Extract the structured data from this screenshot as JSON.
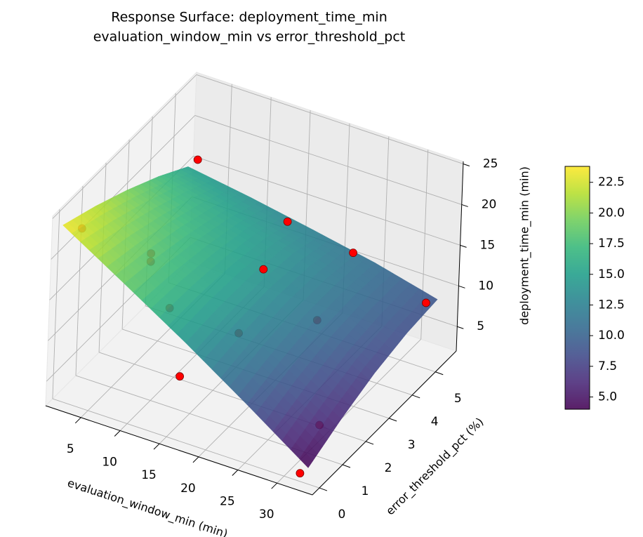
{
  "chart_data": {
    "type": "surface3d",
    "title": "Response Surface: deployment_time_min",
    "subtitle": "evaluation_window_min vs error_threshold_pct",
    "x_label": "evaluation_window_min (min)",
    "y_label": "error_threshold_pct (%)",
    "z_label": "deployment_time_min (min)",
    "xlim": [
      0.5,
      34.5
    ],
    "ylim": [
      -0.3,
      5.9
    ],
    "zlim": [
      2,
      25.3
    ],
    "xticks": [
      5,
      10,
      15,
      20,
      25,
      30
    ],
    "yticks": [
      0,
      1,
      2,
      3,
      4,
      5
    ],
    "zticks": [
      5,
      10,
      15,
      20,
      25
    ],
    "grid": true,
    "surface": {
      "x": [
        1,
        9,
        17,
        25,
        33
      ],
      "y": [
        0,
        1.4,
        2.8,
        4.2,
        5.5
      ],
      "z": [
        [
          23.5,
          21.8,
          19.8,
          17.5,
          15.0
        ],
        [
          18.9,
          18.1,
          17.0,
          15.6,
          13.8
        ],
        [
          14.2,
          14.5,
          14.4,
          13.8,
          12.4
        ],
        [
          9.2,
          10.4,
          11.2,
          11.3,
          10.9
        ],
        [
          4.0,
          6.0,
          7.6,
          8.6,
          9.0
        ]
      ],
      "colormap": "viridis",
      "clim": [
        4.0,
        23.8
      ],
      "colorbar_ticks": [
        {
          "value": 5,
          "label": "5.0"
        },
        7.5,
        {
          "value": 10,
          "label": "10.0"
        },
        12.5,
        {
          "value": 15,
          "label": "15.0"
        },
        17.5,
        {
          "value": 20,
          "label": "20.0"
        },
        22.5
      ]
    },
    "points": {
      "color": "#ff0000",
      "x": [
        2,
        5,
        8,
        8,
        12,
        15,
        18,
        18,
        18,
        25,
        25,
        33,
        30,
        32
      ],
      "y": [
        0.5,
        4.5,
        1.5,
        1.5,
        1,
        0.5,
        4,
        3,
        2,
        4.5,
        3,
        5,
        1.5,
        0
      ],
      "z": [
        22,
        20,
        18,
        17,
        14,
        8,
        18,
        15,
        10,
        15,
        11,
        10,
        4,
        3
      ]
    }
  }
}
